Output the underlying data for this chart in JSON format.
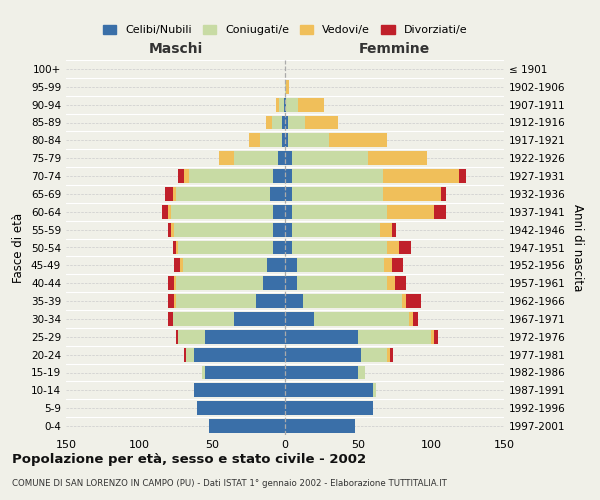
{
  "age_groups": [
    "100+",
    "95-99",
    "90-94",
    "85-89",
    "80-84",
    "75-79",
    "70-74",
    "65-69",
    "60-64",
    "55-59",
    "50-54",
    "45-49",
    "40-44",
    "35-39",
    "30-34",
    "25-29",
    "20-24",
    "15-19",
    "10-14",
    "5-9",
    "0-4"
  ],
  "birth_years": [
    "≤ 1901",
    "1902-1906",
    "1907-1911",
    "1912-1916",
    "1917-1921",
    "1922-1926",
    "1927-1931",
    "1932-1936",
    "1937-1941",
    "1942-1946",
    "1947-1951",
    "1952-1956",
    "1957-1961",
    "1962-1966",
    "1967-1971",
    "1972-1976",
    "1977-1981",
    "1982-1986",
    "1987-1991",
    "1992-1996",
    "1997-2001"
  ],
  "maschi": {
    "celibi": [
      0,
      0,
      1,
      2,
      2,
      5,
      8,
      10,
      8,
      8,
      8,
      12,
      15,
      20,
      35,
      55,
      62,
      55,
      62,
      60,
      52
    ],
    "coniugati": [
      0,
      0,
      3,
      7,
      15,
      30,
      58,
      65,
      70,
      68,
      65,
      58,
      60,
      55,
      42,
      18,
      6,
      2,
      0,
      0,
      0
    ],
    "vedovi": [
      0,
      0,
      2,
      4,
      8,
      10,
      3,
      2,
      2,
      2,
      2,
      2,
      1,
      1,
      0,
      0,
      0,
      0,
      0,
      0,
      0
    ],
    "divorziati": [
      0,
      0,
      0,
      0,
      0,
      0,
      4,
      5,
      4,
      2,
      2,
      4,
      4,
      4,
      3,
      2,
      1,
      0,
      0,
      0,
      0
    ]
  },
  "femmine": {
    "nubili": [
      0,
      0,
      1,
      2,
      2,
      5,
      5,
      5,
      5,
      5,
      5,
      8,
      8,
      12,
      20,
      50,
      52,
      50,
      60,
      60,
      48
    ],
    "coniugate": [
      0,
      1,
      8,
      12,
      28,
      52,
      62,
      62,
      65,
      60,
      65,
      60,
      62,
      68,
      65,
      50,
      18,
      5,
      2,
      0,
      0
    ],
    "vedove": [
      0,
      2,
      18,
      22,
      40,
      40,
      52,
      40,
      32,
      8,
      8,
      5,
      5,
      3,
      3,
      2,
      2,
      0,
      0,
      0,
      0
    ],
    "divorziate": [
      0,
      0,
      0,
      0,
      0,
      0,
      5,
      3,
      8,
      3,
      8,
      8,
      8,
      10,
      3,
      3,
      2,
      0,
      0,
      0,
      0
    ]
  },
  "color_celibi": "#3a6fa8",
  "color_coniugati": "#c8dba4",
  "color_vedovi": "#f0bf5a",
  "color_divorziati": "#c0202a",
  "xlim": 150,
  "title": "Popolazione per età, sesso e stato civile - 2002",
  "subtitle": "COMUNE DI SAN LORENZO IN CAMPO (PU) - Dati ISTAT 1° gennaio 2002 - Elaborazione TUTTITALIA.IT",
  "ylabel_left": "Fasce di età",
  "ylabel_right": "Anni di nascita",
  "xlabel_maschi": "Maschi",
  "xlabel_femmine": "Femmine",
  "legend_labels": [
    "Celibi/Nubili",
    "Coniugati/e",
    "Vedovi/e",
    "Divorziati/e"
  ],
  "bg_color": "#f0f0e8"
}
